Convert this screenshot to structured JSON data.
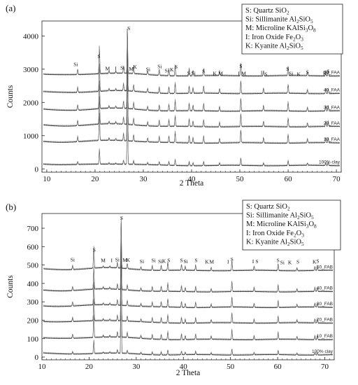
{
  "chart_data": [
    {
      "type": "line",
      "panel_label": "(a)",
      "xlabel": "2 Theta",
      "ylabel": "Counts",
      "xlim": [
        9,
        71
      ],
      "ylim": [
        -100,
        4450
      ],
      "xticks": [
        10,
        20,
        30,
        40,
        50,
        60,
        70
      ],
      "yticks": [
        0,
        1000,
        2000,
        3000,
        4000
      ],
      "grid": false,
      "legend_position": "top-right",
      "legend": [
        {
          "sym": "S",
          "name": "Quartz",
          "formula": [
            [
              "SiO",
              ""
            ],
            [
              "2",
              "sub"
            ]
          ]
        },
        {
          "sym": "Si",
          "name": "Sillimanite",
          "formula": [
            [
              "Al",
              ""
            ],
            [
              "2",
              "sub"
            ],
            [
              "SiO",
              ""
            ],
            [
              "5",
              "sub"
            ]
          ]
        },
        {
          "sym": "M",
          "name": "Microline",
          "formula": [
            [
              "KAlSi",
              ""
            ],
            [
              "3",
              "sub"
            ],
            [
              "O",
              ""
            ],
            [
              "8",
              "sub"
            ]
          ]
        },
        {
          "sym": "I",
          "name": "Iron Oxide",
          "formula": [
            [
              "Fe",
              ""
            ],
            [
              "2",
              "sub"
            ],
            [
              "O",
              ""
            ],
            [
              "3",
              "sub"
            ]
          ]
        },
        {
          "sym": "K",
          "name": "Kyanite",
          "formula": [
            [
              "Al",
              ""
            ],
            [
              "2",
              "sub"
            ],
            [
              "SiO",
              ""
            ],
            [
              "5",
              "sub"
            ]
          ]
        }
      ],
      "series": [
        {
          "name": "100% clay",
          "baseline": 100,
          "main_peak": 3900,
          "peak_scale": 0.55
        },
        {
          "name": "10_FAA",
          "baseline": 780,
          "main_peak": 3300,
          "peak_scale": 1
        },
        {
          "name": "20_FAA",
          "baseline": 1270,
          "main_peak": 2850,
          "peak_scale": 1
        },
        {
          "name": "30_FAA",
          "baseline": 1740,
          "main_peak": 2400,
          "peak_scale": 1
        },
        {
          "name": "40_FAA",
          "baseline": 2270,
          "main_peak": 1850,
          "peak_scale": 1
        },
        {
          "name": "50_FAA",
          "baseline": 2800,
          "main_peak": 1300,
          "peak_scale": 1
        }
      ],
      "peaks": [
        {
          "x": 16.4,
          "h": 160
        },
        {
          "x": 20.9,
          "h": 820
        },
        {
          "x": 22.9,
          "h": 70
        },
        {
          "x": 24.3,
          "h": 60
        },
        {
          "x": 25.9,
          "h": 220
        },
        {
          "x": 28.0,
          "h": 200
        },
        {
          "x": 30.9,
          "h": 120
        },
        {
          "x": 33.3,
          "h": 180
        },
        {
          "x": 35.3,
          "h": 200
        },
        {
          "x": 36.6,
          "h": 330
        },
        {
          "x": 39.5,
          "h": 230
        },
        {
          "x": 40.3,
          "h": 170
        },
        {
          "x": 42.5,
          "h": 220
        },
        {
          "x": 45.8,
          "h": 140
        },
        {
          "x": 50.2,
          "h": 400
        },
        {
          "x": 54.9,
          "h": 160
        },
        {
          "x": 60.0,
          "h": 270
        },
        {
          "x": 64.0,
          "h": 120
        },
        {
          "x": 67.8,
          "h": 160
        },
        {
          "x": 68.3,
          "h": 160
        }
      ],
      "main_peak_x": 26.7,
      "annotations": [
        {
          "t": "Si",
          "x": 16.0,
          "y": 3090
        },
        {
          "t": "S",
          "x": 20.8,
          "y": 3330
        },
        {
          "t": "M",
          "x": 22.6,
          "y": 2960
        },
        {
          "t": "I",
          "x": 24.3,
          "y": 2960
        },
        {
          "t": "Si",
          "x": 25.7,
          "y": 2990
        },
        {
          "t": "M",
          "x": 27.5,
          "y": 2950
        },
        {
          "t": "K",
          "x": 28.3,
          "y": 3020
        },
        {
          "t": "Si",
          "x": 31.0,
          "y": 2940
        },
        {
          "t": "Si",
          "x": 33.4,
          "y": 3030
        },
        {
          "t": "Si",
          "x": 34.9,
          "y": 2900
        },
        {
          "t": "K",
          "x": 35.9,
          "y": 2930
        },
        {
          "t": "S",
          "x": 36.8,
          "y": 3020
        },
        {
          "t": "S",
          "x": 39.4,
          "y": 2830
        },
        {
          "t": "Si",
          "x": 40.4,
          "y": 2830
        },
        {
          "t": "S",
          "x": 42.5,
          "y": 2880
        },
        {
          "t": "K",
          "x": 44.8,
          "y": 2820
        },
        {
          "t": "M",
          "x": 46.0,
          "y": 2820
        },
        {
          "t": "I",
          "x": 49.8,
          "y": 2820
        },
        {
          "t": "S",
          "x": 50.2,
          "y": 3040
        },
        {
          "t": "M",
          "x": 50.8,
          "y": 2820
        },
        {
          "t": "I",
          "x": 54.5,
          "y": 2840
        },
        {
          "t": "S",
          "x": 55.4,
          "y": 2800
        },
        {
          "t": "S",
          "x": 59.9,
          "y": 2950
        },
        {
          "t": "Si",
          "x": 60.6,
          "y": 2820
        },
        {
          "t": "K",
          "x": 62.2,
          "y": 2800
        },
        {
          "t": "S",
          "x": 64.0,
          "y": 2860
        },
        {
          "t": "K",
          "x": 67.6,
          "y": 2820
        },
        {
          "t": "S",
          "x": 68.3,
          "y": 2880
        },
        {
          "t": "S",
          "x": 27.0,
          "y": 4180
        }
      ]
    },
    {
      "type": "line",
      "panel_label": "(b)",
      "xlabel": "2 Theta",
      "ylabel": "Counts",
      "xlim": [
        10,
        72
      ],
      "ylim": [
        -15,
        780
      ],
      "xticks": [
        10,
        20,
        30,
        40,
        50,
        60,
        70
      ],
      "yticks": [
        0,
        100,
        200,
        300,
        400,
        500,
        600,
        700
      ],
      "grid": false,
      "legend_position": "top-right",
      "legend": [
        {
          "sym": "S",
          "name": "Quartz",
          "formula": [
            [
              "SiO",
              ""
            ],
            [
              "2",
              "sub"
            ]
          ]
        },
        {
          "sym": "Si",
          "name": "Sillimanite",
          "formula": [
            [
              "Al",
              ""
            ],
            [
              "2",
              "sub"
            ],
            [
              "SiO",
              ""
            ],
            [
              "5",
              "sub"
            ]
          ]
        },
        {
          "sym": "M",
          "name": "Microline",
          "formula": [
            [
              "KAlSi",
              ""
            ],
            [
              "3",
              "sub"
            ],
            [
              "O",
              ""
            ],
            [
              "8",
              "sub"
            ]
          ]
        },
        {
          "sym": "I",
          "name": "Iron Oxide",
          "formula": [
            [
              "Fe",
              ""
            ],
            [
              "2",
              "sub"
            ],
            [
              "O",
              ""
            ],
            [
              "3",
              "sub"
            ]
          ]
        },
        {
          "sym": "K",
          "name": "Kyanite",
          "formula": [
            [
              "Al",
              ""
            ],
            [
              "2",
              "sub"
            ],
            [
              "SiO",
              ""
            ],
            [
              "5",
              "sub"
            ]
          ]
        }
      ],
      "series": [
        {
          "name": "100% clay",
          "baseline": 12,
          "main_peak": 700,
          "peak_scale": 0.6
        },
        {
          "name": "10_FAB",
          "baseline": 95,
          "main_peak": 610,
          "peak_scale": 1
        },
        {
          "name": "20_FAB",
          "baseline": 185,
          "main_peak": 530,
          "peak_scale": 1
        },
        {
          "name": "30_FAB",
          "baseline": 270,
          "main_peak": 450,
          "peak_scale": 1
        },
        {
          "name": "40_FAB",
          "baseline": 355,
          "main_peak": 370,
          "peak_scale": 1
        },
        {
          "name": "50_FAB",
          "baseline": 470,
          "main_peak": 275,
          "peak_scale": 1
        }
      ],
      "peaks": [
        {
          "x": 16.5,
          "h": 22
        },
        {
          "x": 21.0,
          "h": 120
        },
        {
          "x": 23.0,
          "h": 10
        },
        {
          "x": 24.4,
          "h": 9
        },
        {
          "x": 26.0,
          "h": 30
        },
        {
          "x": 28.1,
          "h": 28
        },
        {
          "x": 31.0,
          "h": 16
        },
        {
          "x": 33.4,
          "h": 26
        },
        {
          "x": 35.3,
          "h": 28
        },
        {
          "x": 36.7,
          "h": 45
        },
        {
          "x": 39.6,
          "h": 32
        },
        {
          "x": 40.4,
          "h": 22
        },
        {
          "x": 42.6,
          "h": 30
        },
        {
          "x": 45.9,
          "h": 18
        },
        {
          "x": 50.3,
          "h": 55
        },
        {
          "x": 55.0,
          "h": 22
        },
        {
          "x": 60.1,
          "h": 38
        },
        {
          "x": 64.1,
          "h": 16
        },
        {
          "x": 67.9,
          "h": 22
        },
        {
          "x": 68.4,
          "h": 22
        }
      ],
      "main_peak_x": 26.8,
      "annotations": [
        {
          "t": "Si",
          "x": 16.5,
          "y": 520
        },
        {
          "t": "S",
          "x": 21.1,
          "y": 573
        },
        {
          "t": "M",
          "x": 23.0,
          "y": 515
        },
        {
          "t": "I",
          "x": 24.8,
          "y": 515
        },
        {
          "t": "Si",
          "x": 26.0,
          "y": 520
        },
        {
          "t": "M",
          "x": 27.6,
          "y": 518
        },
        {
          "t": "K",
          "x": 28.3,
          "y": 518
        },
        {
          "t": "Si",
          "x": 31.2,
          "y": 510
        },
        {
          "t": "Si",
          "x": 33.7,
          "y": 515
        },
        {
          "t": "Si",
          "x": 35.1,
          "y": 510
        },
        {
          "t": "K",
          "x": 35.9,
          "y": 512
        },
        {
          "t": "S",
          "x": 36.9,
          "y": 516
        },
        {
          "t": "S",
          "x": 39.6,
          "y": 515
        },
        {
          "t": "Si",
          "x": 40.5,
          "y": 510
        },
        {
          "t": "S",
          "x": 42.7,
          "y": 516
        },
        {
          "t": "K",
          "x": 45.0,
          "y": 508
        },
        {
          "t": "M",
          "x": 46.0,
          "y": 508
        },
        {
          "t": "I",
          "x": 49.5,
          "y": 508
        },
        {
          "t": "S",
          "x": 50.3,
          "y": 522
        },
        {
          "t": "I",
          "x": 54.8,
          "y": 510
        },
        {
          "t": "S",
          "x": 55.6,
          "y": 510
        },
        {
          "t": "S",
          "x": 60.1,
          "y": 515
        },
        {
          "t": "Si",
          "x": 61.0,
          "y": 505
        },
        {
          "t": "K",
          "x": 62.6,
          "y": 505
        },
        {
          "t": "S",
          "x": 64.3,
          "y": 508
        },
        {
          "t": "K",
          "x": 67.8,
          "y": 508
        },
        {
          "t": "S",
          "x": 68.5,
          "y": 512
        },
        {
          "t": "S",
          "x": 26.9,
          "y": 745
        }
      ]
    }
  ]
}
